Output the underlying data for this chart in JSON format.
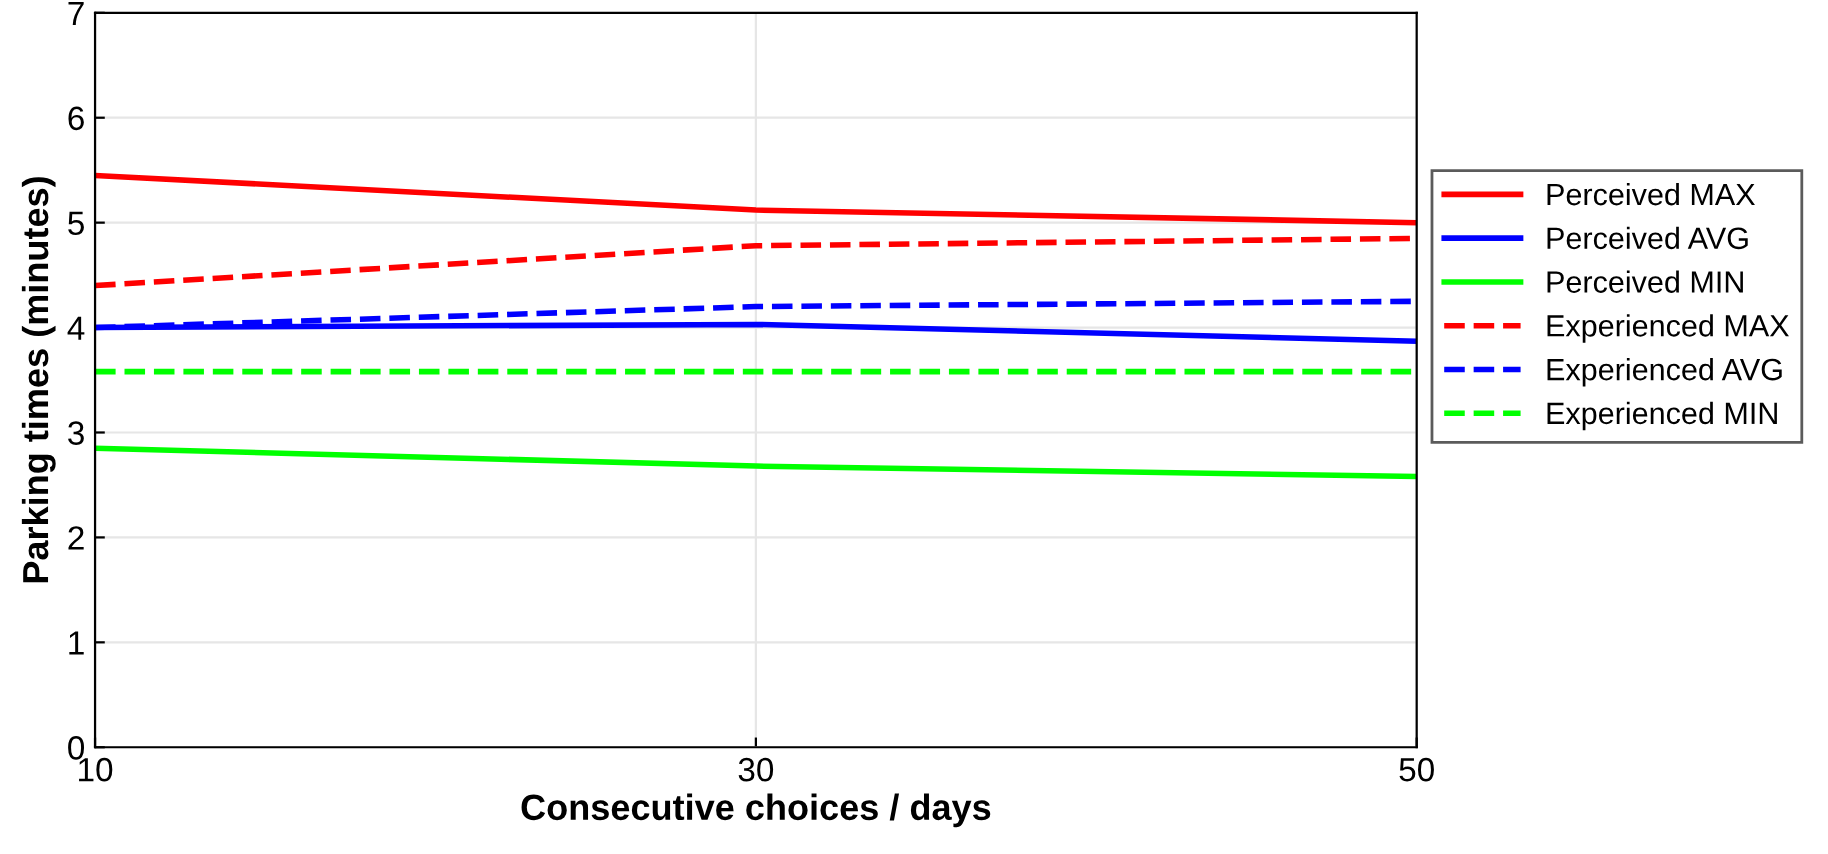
{
  "chart_data": {
    "type": "line",
    "xlabel": "Consecutive choices / days",
    "ylabel": "Parking times (minutes)",
    "x": [
      10,
      30,
      50
    ],
    "series": [
      {
        "name": "Perceived MAX",
        "color": "#ff0000",
        "values": [
          5.45,
          5.12,
          5.0
        ],
        "line_style": "solid"
      },
      {
        "name": "Perceived AVG",
        "color": "#0000ff",
        "values": [
          4.0,
          4.03,
          3.87
        ],
        "line_style": "solid"
      },
      {
        "name": "Perceived MIN",
        "color": "#00ff00",
        "values": [
          2.85,
          2.68,
          2.58
        ],
        "line_style": "solid"
      },
      {
        "name": "Experienced MAX",
        "color": "#ff0000",
        "values": [
          4.4,
          4.78,
          4.85
        ],
        "line_style": "dashed"
      },
      {
        "name": "Experienced AVG",
        "color": "#0000ff",
        "values": [
          4.0,
          4.2,
          4.25
        ],
        "line_style": "dashed"
      },
      {
        "name": "Experienced MIN",
        "color": "#00ff00",
        "values": [
          3.58,
          3.58,
          3.58
        ],
        "line_style": "dashed"
      }
    ],
    "xlim": [
      10,
      50
    ],
    "xticks": [
      10,
      30,
      50
    ],
    "ylim": [
      0,
      7
    ],
    "yticks": [
      0,
      1,
      2,
      3,
      4,
      5,
      6,
      7
    ],
    "grid": true,
    "legend": "right",
    "marker": "none"
  }
}
